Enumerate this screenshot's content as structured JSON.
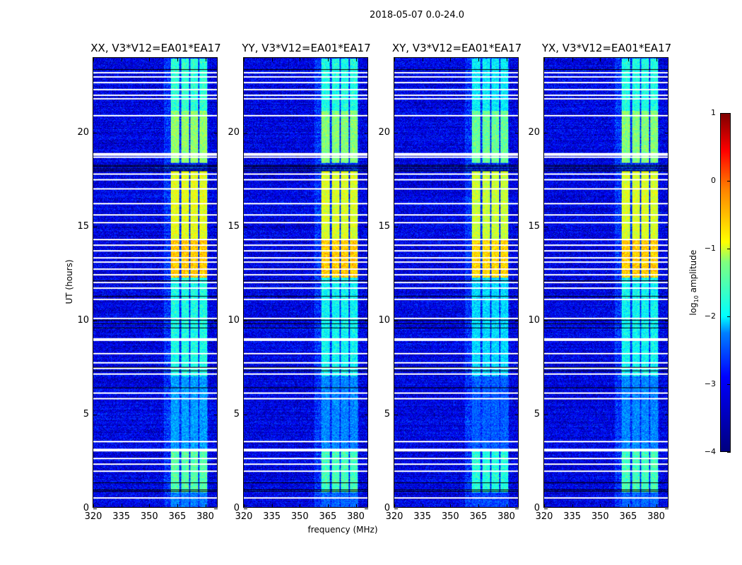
{
  "suptitle": "2018-05-07 0.0-24.0",
  "chart_data": {
    "type": "heatmap",
    "title": "2018-05-07 0.0-24.0",
    "xlabel": "frequency (MHz)",
    "ylabel": "UT (hours)",
    "xlim": [
      320,
      387
    ],
    "ylim": [
      0,
      24
    ],
    "xticks": [
      320,
      335,
      350,
      365,
      380
    ],
    "yticks": [
      0,
      5,
      10,
      15,
      20
    ],
    "panels": [
      {
        "title": "XX, V3*V12=EA01*EA17",
        "gain": 1.0
      },
      {
        "title": "YY, V3*V12=EA01*EA17",
        "gain": 0.95
      },
      {
        "title": "XY, V3*V12=EA01*EA17",
        "gain": 0.85
      },
      {
        "title": "YX, V3*V12=EA01*EA17",
        "gain": 0.95
      }
    ],
    "colorbar": {
      "label": "log10 amplitude",
      "clim": [
        -4,
        1
      ],
      "ticks": [
        1,
        0,
        -1,
        -2,
        -3,
        -4
      ],
      "tick_labels": [
        "1",
        "0",
        "−1",
        "−2",
        "−3",
        "−4"
      ],
      "colormap": "jet"
    },
    "background_log_amplitude": -3.5,
    "rfi_subbands_mhz": [
      [
        362,
        366.5
      ],
      [
        367.5,
        371.5
      ],
      [
        372.5,
        376.5
      ],
      [
        377.5,
        381.5
      ]
    ],
    "rfi_level_by_time": [
      {
        "t": [
          0,
          0.8
        ],
        "level": -2.8
      },
      {
        "t": [
          0.8,
          3.1
        ],
        "level": -1.7
      },
      {
        "t": [
          3.1,
          7.0
        ],
        "level": -2.6
      },
      {
        "t": [
          7.0,
          9.0
        ],
        "level": -2.0
      },
      {
        "t": [
          9.0,
          12.3
        ],
        "level": -2.0
      },
      {
        "t": [
          12.3,
          14.3
        ],
        "level": -0.6
      },
      {
        "t": [
          14.3,
          18.0
        ],
        "level": -1.0
      },
      {
        "t": [
          18.4,
          21.2
        ],
        "level": -1.4
      },
      {
        "t": [
          21.2,
          24.0
        ],
        "level": -1.9
      }
    ],
    "flagged_white_hours": [
      0.5,
      1.9,
      2.3,
      2.6,
      3.0,
      3.1,
      3.5,
      5.8,
      6.1,
      7.1,
      7.4,
      7.7,
      8.2,
      8.9,
      9.0,
      10.1,
      11.1,
      11.7,
      12.0,
      12.4,
      12.7,
      13.1,
      13.3,
      13.7,
      14.0,
      14.3,
      15.2,
      15.6,
      16.2,
      17.0,
      17.5,
      17.8,
      18.7,
      18.8,
      18.9,
      20.9,
      21.8,
      22.0,
      22.3,
      22.7,
      23.0,
      23.2
    ],
    "flagged_black_hours": [
      0.85,
      0.95,
      1.3,
      3.05,
      6.4,
      7.3,
      7.5,
      9.6,
      9.8,
      10.0,
      11.3,
      12.1,
      18.0,
      18.1,
      18.2,
      18.3,
      23.4
    ]
  }
}
